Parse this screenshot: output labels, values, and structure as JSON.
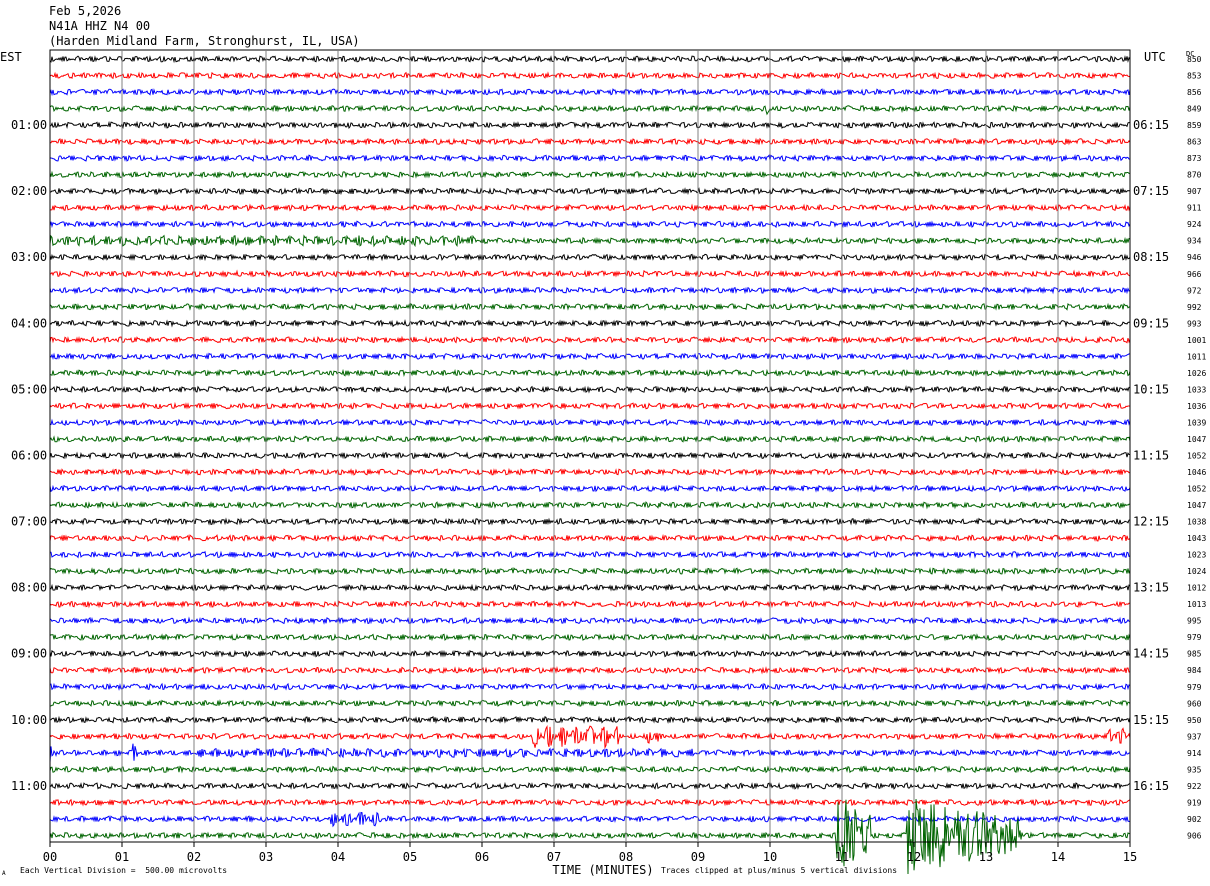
{
  "header": {
    "date": "Feb 5,2026",
    "station": "N41A HHZ N4 00",
    "location": "(Harden Midland Farm, Stronghurst, IL, USA)"
  },
  "axis": {
    "left_tz": "EST",
    "right_tz": "UTC",
    "dc_label": "DC",
    "xlabel": "TIME (MINUTES)"
  },
  "footer": {
    "scale": "Each Vertical Division =  500.00 microvolts",
    "clip": "Traces clipped at plus/minus 5 vertical divisions",
    "corner_mark": "A"
  },
  "colors": {
    "black": "#000000",
    "red": "#ff0000",
    "blue": "#0000ff",
    "green": "#006400",
    "grid": "#808080"
  },
  "chart_data": {
    "type": "line",
    "title": "N41A HHZ N4 00",
    "xlabel": "TIME (MINUTES)",
    "xlim": [
      0,
      15
    ],
    "x_ticks": [
      "00",
      "01",
      "02",
      "03",
      "04",
      "05",
      "06",
      "07",
      "08",
      "09",
      "10",
      "11",
      "12",
      "13",
      "14",
      "15"
    ],
    "left_hour_labels": [
      "01:00",
      "02:00",
      "03:00",
      "04:00",
      "05:00",
      "06:00",
      "07:00",
      "08:00",
      "09:00",
      "10:00",
      "11:00"
    ],
    "right_hour_labels": [
      "06:15",
      "07:15",
      "08:15",
      "09:15",
      "10:15",
      "11:15",
      "12:15",
      "13:15",
      "14:15",
      "15:15",
      "16:15"
    ],
    "trace_color_cycle": [
      "black",
      "red",
      "blue",
      "green"
    ],
    "dc_offsets": [
      850,
      853,
      856,
      849,
      859,
      863,
      873,
      870,
      907,
      911,
      924,
      934,
      946,
      966,
      972,
      992,
      993,
      1001,
      1011,
      1026,
      1033,
      1036,
      1039,
      1047,
      1052,
      1046,
      1052,
      1047,
      1038,
      1043,
      1023,
      1024,
      1012,
      1013,
      995,
      979,
      985,
      984,
      979,
      960,
      950,
      937,
      914,
      935,
      922,
      919,
      902,
      906
    ],
    "amplitude_unit": "microvolts",
    "vertical_division_microvolts": 500.0,
    "clip_divisions": 5,
    "events": [
      {
        "trace_index": 3,
        "minute_start": 9.95,
        "minute_end": 10.05,
        "relative_amplitude": 3
      },
      {
        "trace_index": 11,
        "minute_start": 0.0,
        "minute_end": 6.0,
        "relative_amplitude": 1.8
      },
      {
        "trace_index": 41,
        "minute_start": 6.7,
        "minute_end": 7.9,
        "relative_amplitude": 4
      },
      {
        "trace_index": 41,
        "minute_start": 8.3,
        "minute_end": 8.45,
        "relative_amplitude": 3
      },
      {
        "trace_index": 41,
        "minute_start": 14.7,
        "minute_end": 15.0,
        "relative_amplitude": 3
      },
      {
        "trace_index": 42,
        "minute_start": 0.0,
        "minute_end": 0.1,
        "relative_amplitude": 4
      },
      {
        "trace_index": 42,
        "minute_start": 1.15,
        "minute_end": 1.25,
        "relative_amplitude": 4
      },
      {
        "trace_index": 42,
        "minute_start": 2.0,
        "minute_end": 9.0,
        "relative_amplitude": 1.6
      },
      {
        "trace_index": 46,
        "minute_start": 3.9,
        "minute_end": 4.6,
        "relative_amplitude": 2.5
      },
      {
        "trace_index": 47,
        "minute_start": 10.9,
        "minute_end": 11.4,
        "relative_amplitude": 25
      },
      {
        "trace_index": 47,
        "minute_start": 11.9,
        "minute_end": 13.5,
        "relative_amplitude": 20
      }
    ]
  }
}
